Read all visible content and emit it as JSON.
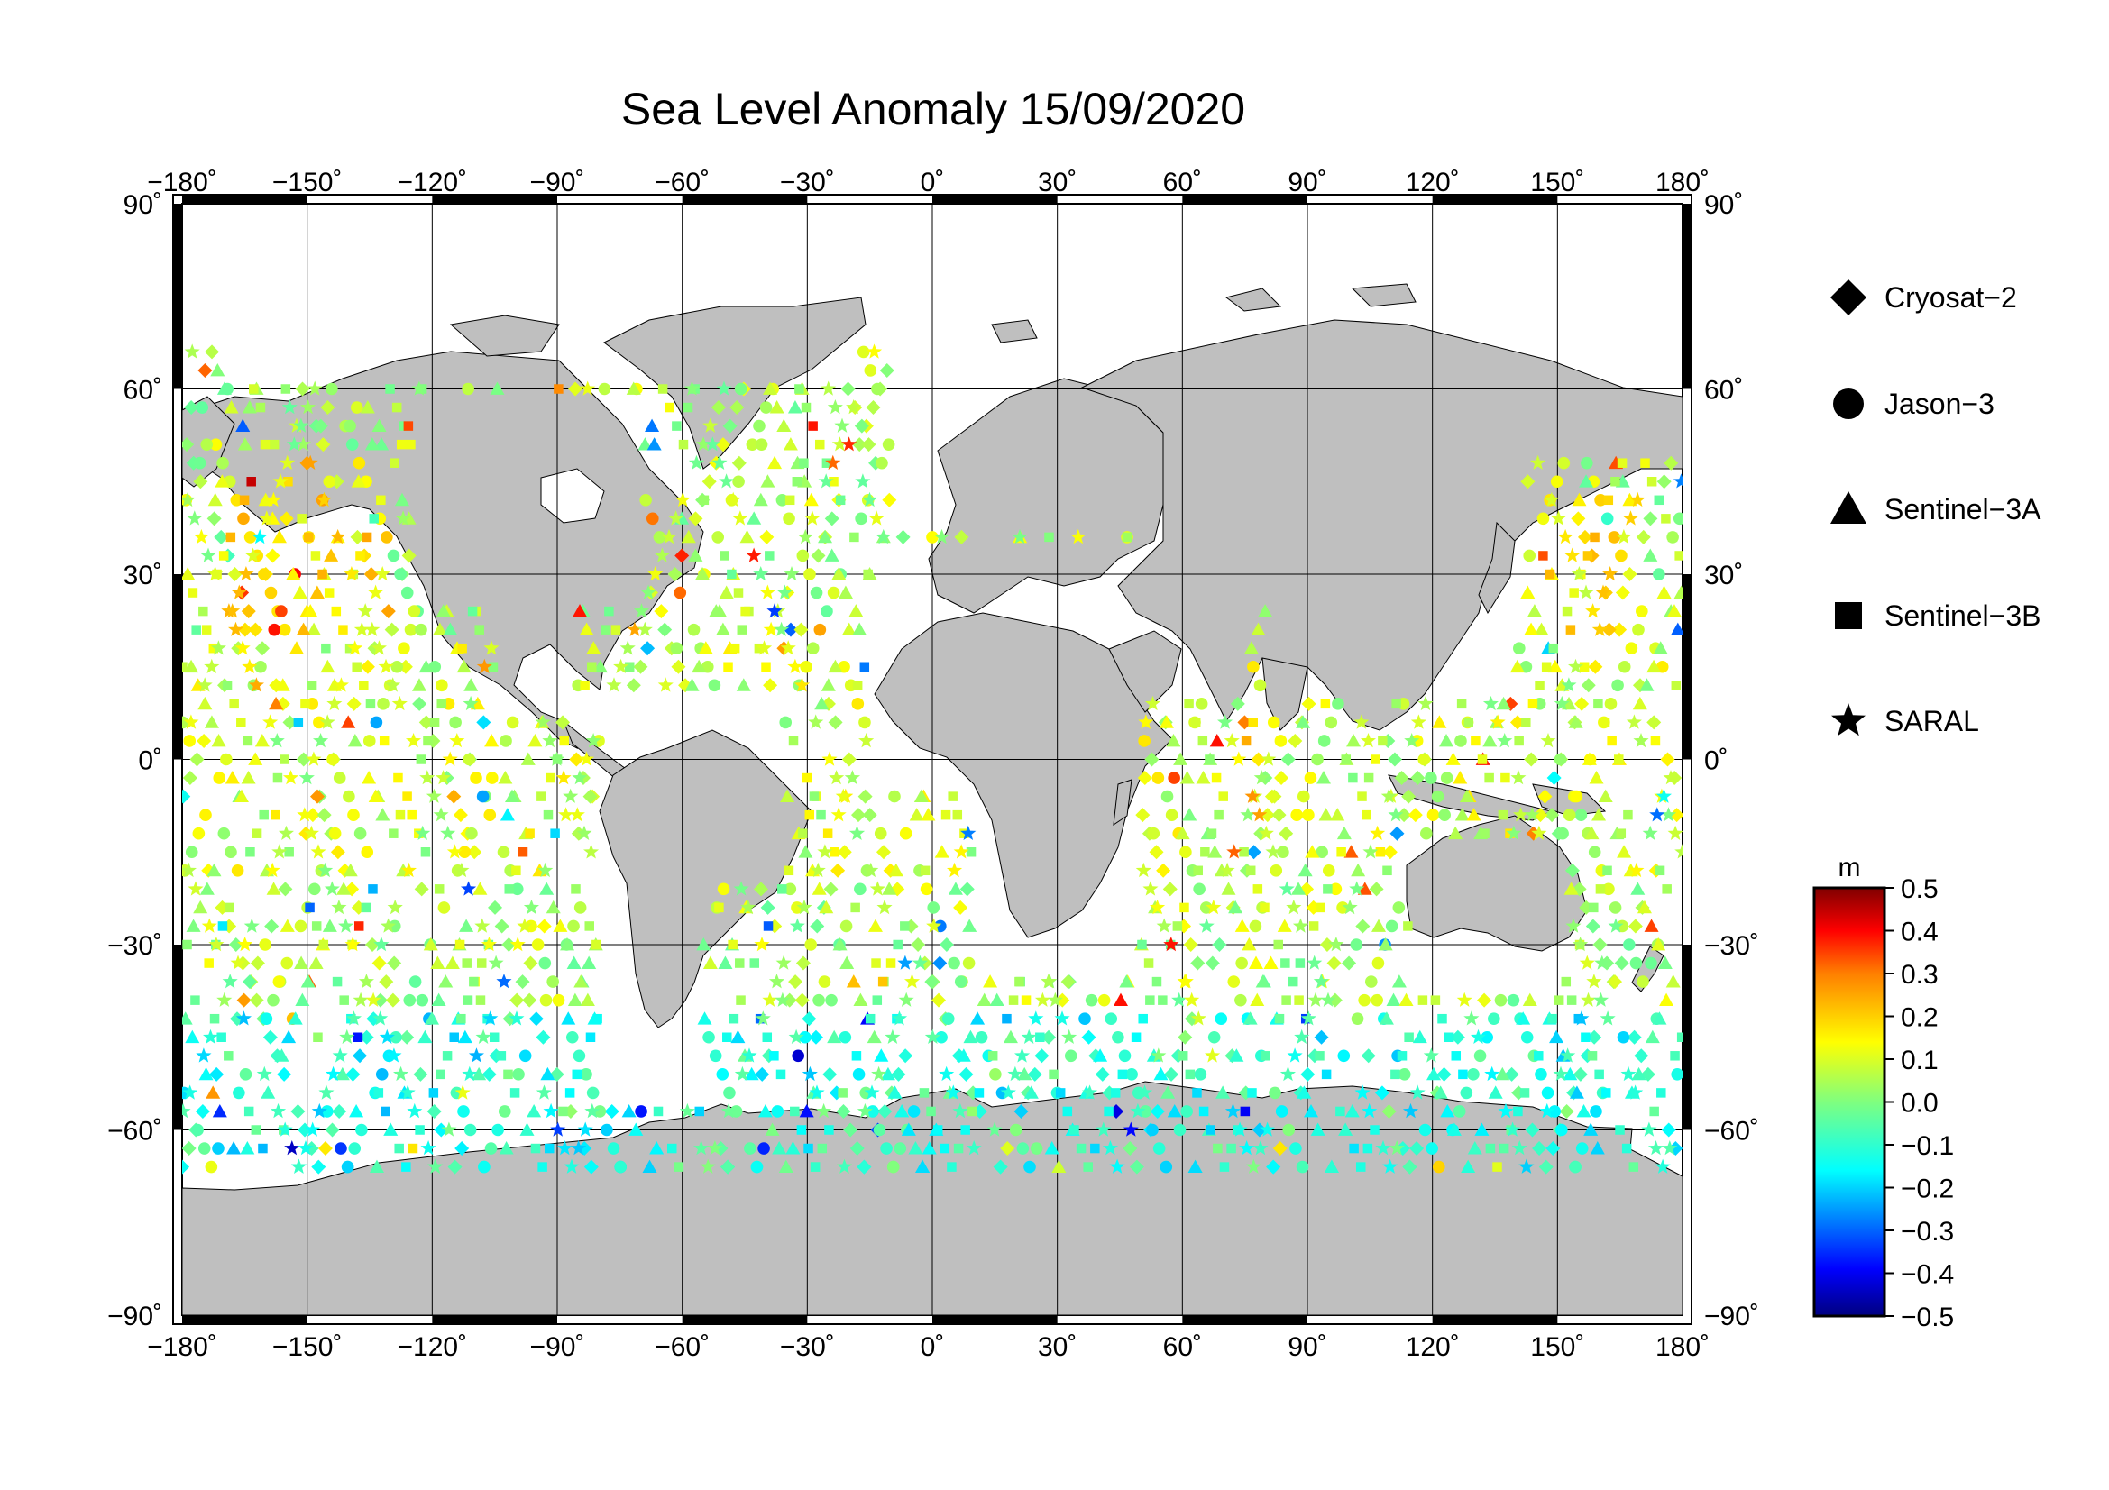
{
  "title": "Sea Level Anomaly 15/09/2020",
  "map": {
    "lon_ticks": [
      "−180˚",
      "−150˚",
      "−120˚",
      "−90˚",
      "−60˚",
      "−30˚",
      "0˚",
      "30˚",
      "60˚",
      "90˚",
      "120˚",
      "150˚",
      "180˚"
    ],
    "lat_ticks": [
      "90˚",
      "60˚",
      "30˚",
      "0˚",
      "−30˚",
      "−60˚",
      "−90˚"
    ],
    "lon_range": [
      -180,
      180
    ],
    "lat_range": [
      -90,
      90
    ],
    "grid": true,
    "land_color": "#bfbfbf"
  },
  "legend": {
    "items": [
      {
        "label": "Cryosat−2",
        "symbol": "diamond"
      },
      {
        "label": "Jason−3",
        "symbol": "circle"
      },
      {
        "label": "Sentinel−3A",
        "symbol": "triangle"
      },
      {
        "label": "Sentinel−3B",
        "symbol": "square"
      },
      {
        "label": "SARAL",
        "symbol": "star"
      }
    ]
  },
  "colorbar": {
    "unit": "m",
    "min": -0.5,
    "max": 0.5,
    "labels": [
      "0.5",
      "0.4",
      "0.3",
      "0.2",
      "0.1",
      "0.0",
      "−0.1",
      "−0.2",
      "−0.3",
      "−0.4",
      "−0.5"
    ],
    "colormap": [
      "#00007f",
      "#0000ff",
      "#007fff",
      "#00ffff",
      "#7fff7f",
      "#ffff00",
      "#ff7f00",
      "#ff0000",
      "#7f0000"
    ]
  }
}
